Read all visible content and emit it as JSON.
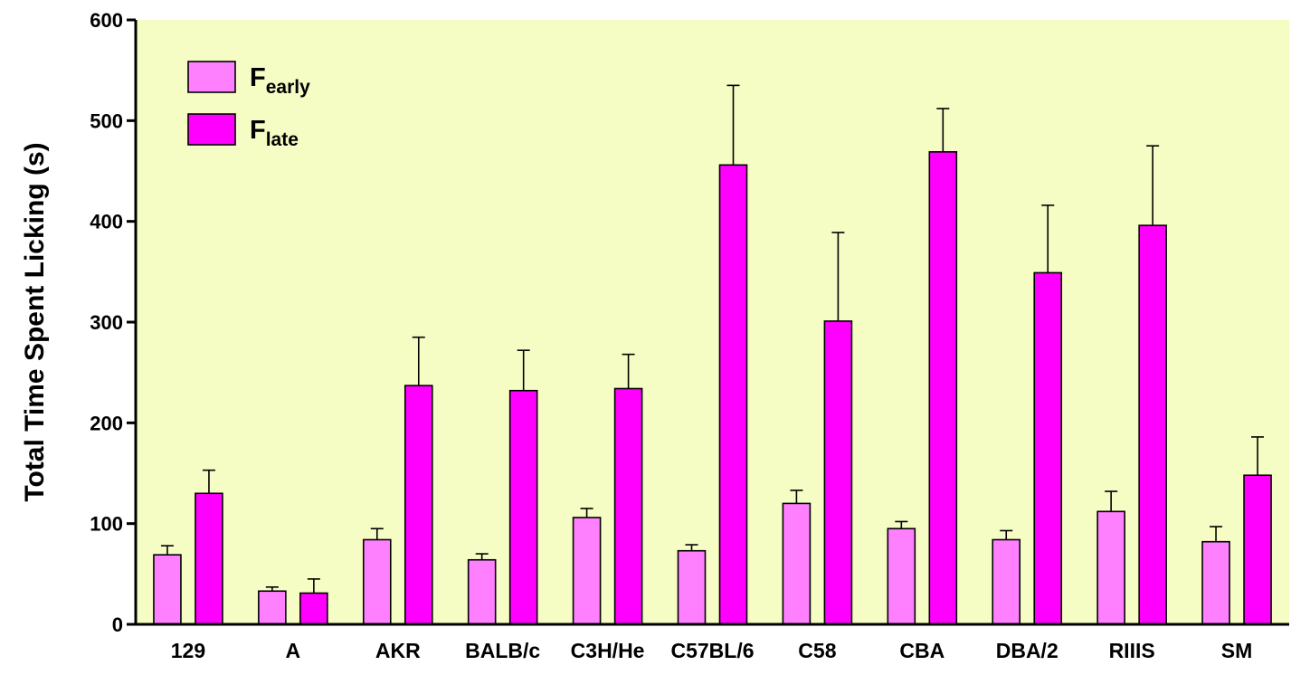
{
  "chart_data": {
    "type": "bar",
    "title": "",
    "xlabel": "",
    "ylabel": "Total Time Spent Licking (s)",
    "ylim": [
      0,
      600
    ],
    "yticks": [
      "0",
      "100",
      "200",
      "300",
      "400",
      "500",
      "600"
    ],
    "grid": false,
    "legend_position": "top-left",
    "plot_background": "#f5fcc4",
    "categories": [
      "129",
      "A",
      "AKR",
      "BALB/c",
      "C3H/He",
      "C57BL/6",
      "C58",
      "CBA",
      "DBA/2",
      "RIIIS",
      "SM"
    ],
    "series": [
      {
        "name": "Fearly",
        "legend": {
          "base": "F",
          "sub": "early"
        },
        "color": "#ff80ff",
        "values": [
          69,
          33,
          84,
          64,
          106,
          73,
          120,
          95,
          84,
          112,
          82
        ],
        "errors": [
          9,
          4,
          11,
          6,
          9,
          6,
          13,
          7,
          9,
          20,
          15
        ]
      },
      {
        "name": "Flate",
        "legend": {
          "base": "F",
          "sub": "late"
        },
        "color": "#ff00ff",
        "values": [
          130,
          31,
          237,
          232,
          234,
          456,
          301,
          469,
          349,
          396,
          148
        ],
        "errors": [
          23,
          14,
          48,
          40,
          34,
          79,
          88,
          43,
          67,
          79,
          38
        ]
      }
    ]
  }
}
